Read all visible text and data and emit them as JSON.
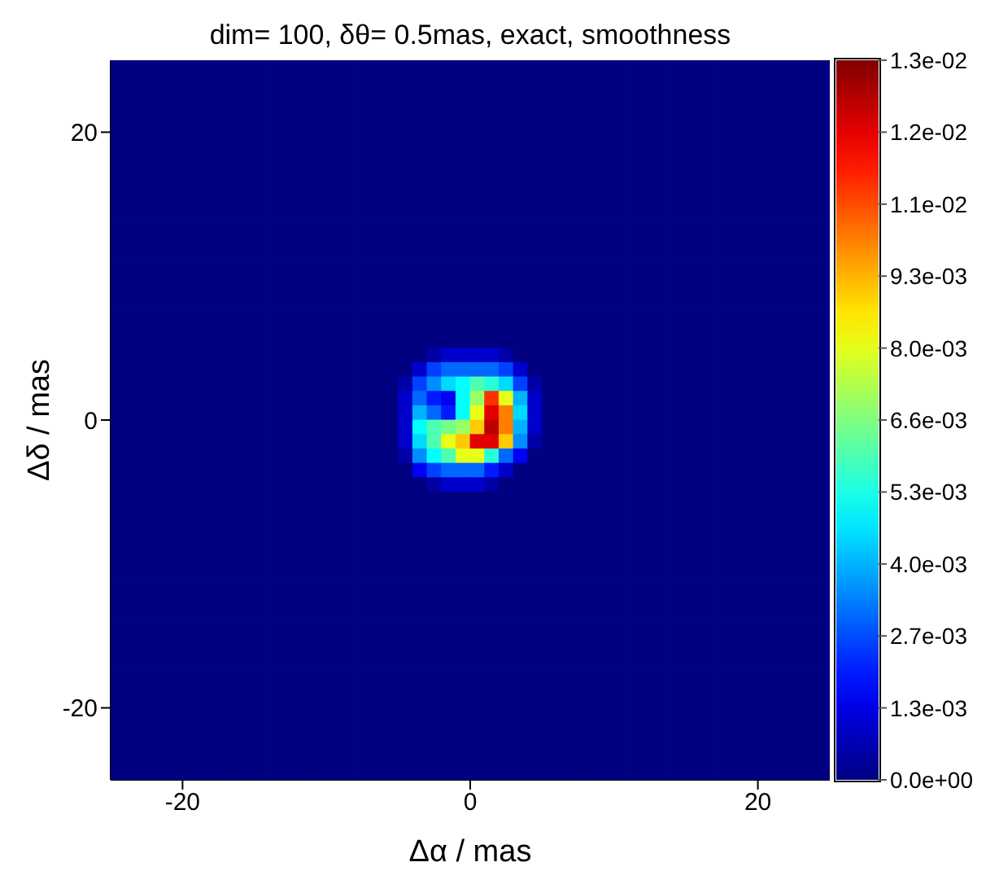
{
  "chart_data": {
    "type": "heatmap",
    "title": "dim= 100, δθ= 0.5mas, exact, smoothness",
    "xlabel": "Δα / mas",
    "ylabel": "Δδ / mas",
    "xlim": [
      -25,
      25
    ],
    "ylim": [
      -25,
      25
    ],
    "xticks": [
      -20,
      0,
      20
    ],
    "yticks": [
      -20,
      0,
      20
    ],
    "clim": [
      0,
      0.0133
    ],
    "cticks": [
      {
        "value": 0,
        "label": "0.0e+00"
      },
      {
        "value": 0.00133,
        "label": "1.3e-03"
      },
      {
        "value": 0.00266,
        "label": "2.7e-03"
      },
      {
        "value": 0.00399,
        "label": "4.0e-03"
      },
      {
        "value": 0.00532,
        "label": "5.3e-03"
      },
      {
        "value": 0.00665,
        "label": "6.6e-03"
      },
      {
        "value": 0.00798,
        "label": "8.0e-03"
      },
      {
        "value": 0.00931,
        "label": "9.3e-03"
      },
      {
        "value": 0.01064,
        "label": "1.1e-02"
      },
      {
        "value": 0.01197,
        "label": "1.2e-02"
      },
      {
        "value": 0.0133,
        "label": "1.3e-02"
      }
    ],
    "cells": [
      [
        0,
        0,
        0,
        0,
        0,
        0,
        0,
        0,
        0,
        0,
        0,
        0,
        0,
        0,
        0,
        0,
        0,
        0,
        0,
        0,
        0,
        0,
        0,
        0,
        0,
        0,
        0,
        0,
        0,
        0,
        0,
        0,
        0,
        0,
        0,
        0,
        0,
        0,
        0,
        0,
        0,
        0,
        0,
        0,
        0,
        0,
        0,
        0,
        0,
        0
      ],
      [
        0,
        0,
        0,
        0,
        0,
        0,
        0,
        0,
        0,
        0,
        0,
        0,
        0,
        0,
        0,
        0,
        0,
        0,
        0,
        0,
        0,
        0,
        0,
        0,
        0,
        0,
        0,
        0,
        0,
        0,
        0,
        0,
        0,
        0,
        0,
        0,
        0,
        0,
        0,
        0,
        0,
        0,
        0,
        0,
        0,
        0,
        0,
        0,
        0,
        0
      ],
      [
        0,
        0,
        0,
        0,
        0,
        0,
        0,
        0,
        0,
        0,
        0,
        0,
        0,
        0,
        0,
        0,
        0,
        0,
        0,
        0,
        0,
        0,
        0,
        0,
        0,
        0,
        0,
        0,
        0,
        0,
        0,
        0,
        0,
        0,
        0,
        0,
        0,
        0,
        0,
        0,
        0,
        0,
        0,
        0,
        0,
        0,
        0,
        0,
        0,
        0
      ],
      [
        0,
        0,
        0,
        0,
        0,
        0,
        0,
        0,
        0,
        0,
        0,
        0,
        0,
        0,
        0,
        0,
        0,
        0,
        0,
        0,
        0,
        0,
        0,
        0,
        0,
        0,
        0,
        0,
        0,
        0,
        0,
        0,
        0,
        0,
        0,
        0,
        0,
        0,
        0,
        0,
        0,
        0,
        0,
        0,
        0,
        0,
        0,
        0,
        0,
        0
      ],
      [
        0,
        0,
        0,
        0,
        0,
        0,
        0,
        0,
        0,
        0,
        0,
        0,
        0,
        0,
        0,
        0,
        0,
        0,
        0,
        0,
        0,
        0,
        0,
        0,
        0,
        0,
        0,
        0,
        0,
        0,
        0,
        0,
        0,
        0,
        0,
        0,
        0,
        0,
        0,
        0,
        0,
        0,
        0,
        0,
        0,
        0,
        0,
        0,
        0,
        0
      ],
      [
        0,
        0,
        0,
        0,
        0,
        0,
        0,
        0,
        0,
        0,
        0,
        0,
        0,
        0,
        0,
        0,
        0,
        0,
        0,
        0,
        0,
        0,
        0,
        0,
        0,
        0,
        0,
        0,
        0,
        0,
        0,
        0,
        0,
        0,
        0,
        0,
        0,
        0,
        0,
        0,
        0,
        0,
        0,
        0,
        0,
        0,
        0,
        0,
        0,
        0
      ],
      [
        0,
        0,
        0,
        0,
        0,
        0,
        0,
        0,
        0,
        0,
        0,
        0,
        0,
        0,
        0,
        0,
        0,
        0,
        0,
        0,
        0,
        0,
        0,
        0,
        0,
        0,
        0,
        0,
        0,
        0,
        0,
        0,
        0,
        0,
        0,
        0,
        0,
        0,
        0,
        0,
        0,
        0,
        0,
        0,
        0,
        0,
        0,
        0,
        0,
        0
      ],
      [
        0,
        0,
        0,
        0,
        0,
        0,
        0,
        0,
        0,
        0,
        0,
        0,
        0,
        0,
        0,
        0,
        0,
        0,
        0,
        0,
        0,
        0,
        0,
        0,
        0,
        0,
        0,
        0,
        0,
        0,
        0,
        0,
        0,
        0,
        0,
        0,
        0,
        0,
        0,
        0,
        0,
        0,
        0,
        0,
        0,
        0,
        0,
        0,
        0,
        0
      ],
      [
        0,
        0,
        0,
        0,
        0,
        0,
        0,
        0,
        0,
        0,
        0,
        0,
        0,
        0,
        0,
        0,
        0,
        0,
        0,
        0,
        0,
        0,
        0,
        0,
        0,
        0,
        0,
        0,
        0,
        0,
        0,
        0,
        0,
        0,
        0,
        0,
        0,
        0,
        0,
        0,
        0,
        0,
        0,
        0,
        0,
        0,
        0,
        0,
        0,
        0
      ],
      [
        0,
        0,
        0,
        0,
        0,
        0,
        0,
        0,
        0,
        0,
        0,
        0,
        0,
        0,
        0,
        0,
        0,
        0,
        0,
        0,
        0,
        0,
        0,
        0,
        0,
        0,
        0,
        0,
        0,
        0,
        0,
        0,
        0,
        0,
        0,
        0,
        0,
        0,
        0,
        0,
        0,
        0,
        0,
        0,
        0,
        0,
        0,
        0,
        0,
        0
      ],
      [
        0,
        0,
        0,
        0,
        0,
        0,
        0,
        0,
        0,
        0,
        0,
        0,
        0,
        0,
        0,
        0,
        0,
        0,
        0,
        0,
        0,
        0,
        0,
        0,
        0,
        0,
        0,
        0,
        0,
        0,
        0,
        0,
        0,
        0,
        0,
        0,
        0,
        0,
        0,
        0,
        0,
        0,
        0,
        0,
        0,
        0,
        0,
        0,
        0,
        0
      ],
      [
        0,
        0,
        0,
        0,
        0,
        0,
        0,
        0,
        0,
        0,
        0,
        0,
        0,
        0,
        0,
        0,
        0,
        0,
        0,
        0,
        0,
        0,
        0,
        0,
        0,
        0,
        0,
        0,
        0,
        0,
        0,
        0,
        0,
        0,
        0,
        0,
        0,
        0,
        0,
        0,
        0,
        0,
        0,
        0,
        0,
        0,
        0,
        0,
        0,
        0
      ],
      [
        0,
        0,
        0,
        0,
        0,
        0,
        0,
        0,
        0,
        0,
        0,
        0,
        0,
        0,
        0,
        0,
        0,
        0,
        0,
        0,
        0,
        0,
        0,
        0,
        0,
        0,
        0,
        0,
        0,
        0,
        0,
        0,
        0,
        0,
        0,
        0,
        0,
        0,
        0,
        0,
        0,
        0,
        0,
        0,
        0,
        0,
        0,
        0,
        0,
        0
      ],
      [
        0,
        0,
        0,
        0,
        0,
        0,
        0,
        0,
        0,
        0,
        0,
        0,
        0,
        0,
        0,
        0,
        0,
        0,
        0,
        0,
        0,
        0,
        0,
        0,
        0,
        0,
        0,
        0,
        0,
        0,
        0,
        0,
        0,
        0,
        0,
        0,
        0,
        0,
        0,
        0,
        0,
        0,
        0,
        0,
        0,
        0,
        0,
        0,
        0,
        0
      ],
      [
        0,
        0,
        0,
        0,
        0,
        0,
        0,
        0,
        0,
        0,
        0,
        0,
        0,
        0,
        0,
        0,
        0,
        0,
        0,
        0,
        0,
        0,
        0,
        0,
        0,
        0,
        0,
        0,
        0,
        0,
        0,
        0,
        0,
        0,
        0,
        0,
        0,
        0,
        0,
        0,
        0,
        0,
        0,
        0,
        0,
        0,
        0,
        0,
        0,
        0
      ],
      [
        0,
        0,
        0,
        0,
        0,
        0,
        0,
        0,
        0,
        0,
        0,
        0,
        0,
        0,
        0,
        0,
        0,
        0,
        0,
        0,
        0,
        0,
        0,
        0,
        0,
        0,
        0,
        0,
        0,
        0,
        0,
        0,
        0,
        0,
        0,
        0,
        0,
        0,
        0,
        0,
        0,
        0,
        0,
        0,
        0,
        0,
        0,
        0,
        0,
        0
      ],
      [
        0,
        0,
        0,
        0,
        0,
        0,
        0,
        0,
        0,
        0,
        0,
        0,
        0,
        0,
        0,
        0,
        0,
        0,
        0,
        0,
        0,
        0,
        0,
        0,
        0,
        0,
        0,
        0,
        0,
        0,
        0,
        0,
        0,
        0,
        0,
        0,
        0,
        0,
        0,
        0,
        0,
        0,
        0,
        0,
        0,
        0,
        0,
        0,
        0,
        0
      ],
      [
        0,
        0,
        0,
        0,
        0,
        0,
        0,
        0,
        0,
        0,
        0,
        0,
        0,
        0,
        0,
        0,
        0,
        0,
        0,
        0,
        0,
        0,
        0,
        0,
        0,
        0,
        0,
        0,
        0,
        0,
        0,
        0,
        0,
        0,
        0,
        0,
        0,
        0,
        0,
        0,
        0,
        0,
        0,
        0,
        0,
        0,
        0,
        0,
        0,
        0
      ],
      [
        0,
        0,
        0,
        0,
        0,
        0,
        0,
        0,
        0,
        0,
        0,
        0,
        0,
        0,
        0,
        0,
        0,
        0,
        0,
        0,
        0,
        0,
        0,
        0,
        0,
        0,
        0,
        0,
        0,
        0,
        0,
        0,
        0,
        0,
        0,
        0,
        0,
        0,
        0,
        0,
        0,
        0,
        0,
        0,
        0,
        0,
        0,
        0,
        0,
        0
      ],
      [
        0,
        0,
        0,
        0,
        0,
        0,
        0,
        0,
        0,
        0,
        0,
        0,
        0,
        0,
        0,
        0,
        0,
        0,
        0,
        0,
        0,
        0,
        0,
        0,
        0,
        0,
        0,
        0,
        0,
        0,
        0,
        0,
        0,
        0,
        0,
        0,
        0,
        0,
        0,
        0,
        0,
        0,
        0,
        0,
        0,
        0,
        0,
        0,
        0,
        0
      ],
      [
        0,
        0,
        0,
        0,
        0,
        0,
        0,
        0,
        0,
        0,
        0,
        0,
        0,
        0,
        0,
        0,
        0,
        0,
        0,
        0,
        0,
        0,
        0.0005,
        0.001,
        0.001,
        0.001,
        0.001,
        0.0005,
        0,
        0,
        0,
        0,
        0,
        0,
        0,
        0,
        0,
        0,
        0,
        0,
        0,
        0,
        0,
        0,
        0,
        0,
        0,
        0,
        0,
        0
      ],
      [
        0,
        0,
        0,
        0,
        0,
        0,
        0,
        0,
        0,
        0,
        0,
        0,
        0,
        0,
        0,
        0,
        0,
        0,
        0,
        0,
        0,
        0.001,
        0.0025,
        0.003,
        0.003,
        0.003,
        0.003,
        0.0025,
        0.001,
        0,
        0,
        0,
        0,
        0,
        0,
        0,
        0,
        0,
        0,
        0,
        0,
        0,
        0,
        0,
        0,
        0,
        0,
        0,
        0,
        0
      ],
      [
        0,
        0,
        0,
        0,
        0,
        0,
        0,
        0,
        0,
        0,
        0,
        0,
        0,
        0,
        0,
        0,
        0,
        0,
        0,
        0,
        0.0005,
        0.0025,
        0.0035,
        0.0045,
        0.005,
        0.006,
        0.0055,
        0.0045,
        0.0025,
        0.0005,
        0,
        0,
        0,
        0,
        0,
        0,
        0,
        0,
        0,
        0,
        0,
        0,
        0,
        0,
        0,
        0,
        0,
        0,
        0,
        0
      ],
      [
        0,
        0,
        0,
        0,
        0,
        0,
        0,
        0,
        0,
        0,
        0,
        0,
        0,
        0,
        0,
        0,
        0,
        0,
        0,
        0,
        0.001,
        0.003,
        0.002,
        0.0015,
        0.005,
        0.007,
        0.011,
        0.008,
        0.004,
        0.001,
        0,
        0,
        0,
        0,
        0,
        0,
        0,
        0,
        0,
        0,
        0,
        0,
        0,
        0,
        0,
        0,
        0,
        0,
        0,
        0
      ],
      [
        0,
        0,
        0,
        0,
        0,
        0,
        0,
        0,
        0,
        0,
        0,
        0,
        0,
        0,
        0,
        0,
        0,
        0,
        0,
        0,
        0.001,
        0.004,
        0.003,
        0.002,
        0.005,
        0.008,
        0.012,
        0.01,
        0.0045,
        0.001,
        0,
        0,
        0,
        0,
        0,
        0,
        0,
        0,
        0,
        0,
        0,
        0,
        0,
        0,
        0,
        0,
        0,
        0,
        0,
        0
      ],
      [
        0,
        0,
        0,
        0,
        0,
        0,
        0,
        0,
        0,
        0,
        0,
        0,
        0,
        0,
        0,
        0,
        0,
        0,
        0,
        0,
        0.001,
        0.005,
        0.006,
        0.0065,
        0.007,
        0.009,
        0.0125,
        0.01,
        0.004,
        0.001,
        0,
        0,
        0,
        0,
        0,
        0,
        0,
        0,
        0,
        0,
        0,
        0,
        0,
        0,
        0,
        0,
        0,
        0,
        0,
        0
      ],
      [
        0,
        0,
        0,
        0,
        0,
        0,
        0,
        0,
        0,
        0,
        0,
        0,
        0,
        0,
        0,
        0,
        0,
        0,
        0,
        0,
        0.001,
        0.0045,
        0.006,
        0.008,
        0.009,
        0.012,
        0.012,
        0.009,
        0.0035,
        0.0005,
        0,
        0,
        0,
        0,
        0,
        0,
        0,
        0,
        0,
        0,
        0,
        0,
        0,
        0,
        0,
        0,
        0,
        0,
        0,
        0
      ],
      [
        0,
        0,
        0,
        0,
        0,
        0,
        0,
        0,
        0,
        0,
        0,
        0,
        0,
        0,
        0,
        0,
        0,
        0,
        0,
        0,
        0.0005,
        0.0035,
        0.005,
        0.006,
        0.008,
        0.008,
        0.0055,
        0.003,
        0.0015,
        0,
        0,
        0,
        0,
        0,
        0,
        0,
        0,
        0,
        0,
        0,
        0,
        0,
        0,
        0,
        0,
        0,
        0,
        0,
        0,
        0
      ],
      [
        0,
        0,
        0,
        0,
        0,
        0,
        0,
        0,
        0,
        0,
        0,
        0,
        0,
        0,
        0,
        0,
        0,
        0,
        0,
        0,
        0,
        0.0015,
        0.0025,
        0.003,
        0.003,
        0.003,
        0.002,
        0.001,
        0,
        0,
        0,
        0,
        0,
        0,
        0,
        0,
        0,
        0,
        0,
        0,
        0,
        0,
        0,
        0,
        0,
        0,
        0,
        0,
        0,
        0
      ],
      [
        0,
        0,
        0,
        0,
        0,
        0,
        0,
        0,
        0,
        0,
        0,
        0,
        0,
        0,
        0,
        0,
        0,
        0,
        0,
        0,
        0,
        0,
        0.0005,
        0.001,
        0.001,
        0.001,
        0.0005,
        0,
        0,
        0,
        0,
        0,
        0,
        0,
        0,
        0,
        0,
        0,
        0,
        0,
        0,
        0,
        0,
        0,
        0,
        0,
        0,
        0,
        0,
        0
      ],
      [
        0,
        0,
        0,
        0,
        0,
        0,
        0,
        0,
        0,
        0,
        0,
        0,
        0,
        0,
        0,
        0,
        0,
        0,
        0,
        0,
        0,
        0,
        0,
        0,
        0,
        0,
        0,
        0,
        0,
        0,
        0,
        0,
        0,
        0,
        0,
        0,
        0,
        0,
        0,
        0,
        0,
        0,
        0,
        0,
        0,
        0,
        0,
        0,
        0,
        0
      ],
      [
        0,
        0,
        0,
        0,
        0,
        0,
        0,
        0,
        0,
        0,
        0,
        0,
        0,
        0,
        0,
        0,
        0,
        0,
        0,
        0,
        0,
        0,
        0,
        0,
        0,
        0,
        0,
        0,
        0,
        0,
        0,
        0,
        0,
        0,
        0,
        0,
        0,
        0,
        0,
        0,
        0,
        0,
        0,
        0,
        0,
        0,
        0,
        0,
        0,
        0
      ],
      [
        0,
        0,
        0,
        0,
        0,
        0,
        0,
        0,
        0,
        0,
        0,
        0,
        0,
        0,
        0,
        0,
        0,
        0,
        0,
        0,
        0,
        0,
        0,
        0,
        0,
        0,
        0,
        0,
        0,
        0,
        0,
        0,
        0,
        0,
        0,
        0,
        0,
        0,
        0,
        0,
        0,
        0,
        0,
        0,
        0,
        0,
        0,
        0,
        0,
        0
      ],
      [
        0,
        0,
        0,
        0,
        0,
        0,
        0,
        0,
        0,
        0,
        0,
        0,
        0,
        0,
        0,
        0,
        0,
        0,
        0,
        0,
        0,
        0,
        0,
        0,
        0,
        0,
        0,
        0,
        0,
        0,
        0,
        0,
        0,
        0,
        0,
        0,
        0,
        0,
        0,
        0,
        0,
        0,
        0,
        0,
        0,
        0,
        0,
        0,
        0,
        0
      ],
      [
        0,
        0,
        0,
        0,
        0,
        0,
        0,
        0,
        0,
        0,
        0,
        0,
        0,
        0,
        0,
        0,
        0,
        0,
        0,
        0,
        0,
        0,
        0,
        0,
        0,
        0,
        0,
        0,
        0,
        0,
        0,
        0,
        0,
        0,
        0,
        0,
        0,
        0,
        0,
        0,
        0,
        0,
        0,
        0,
        0,
        0,
        0,
        0,
        0,
        0
      ],
      [
        0,
        0,
        0,
        0,
        0,
        0,
        0,
        0,
        0,
        0,
        0,
        0,
        0,
        0,
        0,
        0,
        0,
        0,
        0,
        0,
        0,
        0,
        0,
        0,
        0,
        0,
        0,
        0,
        0,
        0,
        0,
        0,
        0,
        0,
        0,
        0,
        0,
        0,
        0,
        0,
        0,
        0,
        0,
        0,
        0,
        0,
        0,
        0,
        0,
        0
      ],
      [
        0,
        0,
        0,
        0,
        0,
        0,
        0,
        0,
        0,
        0,
        0,
        0,
        0,
        0,
        0,
        0,
        0,
        0,
        0,
        0,
        0,
        0,
        0,
        0,
        0,
        0,
        0,
        0,
        0,
        0,
        0,
        0,
        0,
        0,
        0,
        0,
        0,
        0,
        0,
        0,
        0,
        0,
        0,
        0,
        0,
        0,
        0,
        0,
        0,
        0
      ],
      [
        0,
        0,
        0,
        0,
        0,
        0,
        0,
        0,
        0,
        0,
        0,
        0,
        0,
        0,
        0,
        0,
        0,
        0,
        0,
        0,
        0,
        0,
        0,
        0,
        0,
        0,
        0,
        0,
        0,
        0,
        0,
        0,
        0,
        0,
        0,
        0,
        0,
        0,
        0,
        0,
        0,
        0,
        0,
        0,
        0,
        0,
        0,
        0,
        0,
        0
      ],
      [
        0,
        0,
        0,
        0,
        0,
        0,
        0,
        0,
        0,
        0,
        0,
        0,
        0,
        0,
        0,
        0,
        0,
        0,
        0,
        0,
        0,
        0,
        0,
        0,
        0,
        0,
        0,
        0,
        0,
        0,
        0,
        0,
        0,
        0,
        0,
        0,
        0,
        0,
        0,
        0,
        0,
        0,
        0,
        0,
        0,
        0,
        0,
        0,
        0,
        0
      ],
      [
        0,
        0,
        0,
        0,
        0,
        0,
        0,
        0,
        0,
        0,
        0,
        0,
        0,
        0,
        0,
        0,
        0,
        0,
        0,
        0,
        0,
        0,
        0,
        0,
        0,
        0,
        0,
        0,
        0,
        0,
        0,
        0,
        0,
        0,
        0,
        0,
        0,
        0,
        0,
        0,
        0,
        0,
        0,
        0,
        0,
        0,
        0,
        0,
        0,
        0
      ],
      [
        0,
        0,
        0,
        0,
        0,
        0,
        0,
        0,
        0,
        0,
        0,
        0,
        0,
        0,
        0,
        0,
        0,
        0,
        0,
        0,
        0,
        0,
        0,
        0,
        0,
        0,
        0,
        0,
        0,
        0,
        0,
        0,
        0,
        0,
        0,
        0,
        0,
        0,
        0,
        0,
        0,
        0,
        0,
        0,
        0,
        0,
        0,
        0,
        0,
        0
      ],
      [
        0,
        0,
        0,
        0,
        0,
        0,
        0,
        0,
        0,
        0,
        0,
        0,
        0,
        0,
        0,
        0,
        0,
        0,
        0,
        0,
        0,
        0,
        0,
        0,
        0,
        0,
        0,
        0,
        0,
        0,
        0,
        0,
        0,
        0,
        0,
        0,
        0,
        0,
        0,
        0,
        0,
        0,
        0,
        0,
        0,
        0,
        0,
        0,
        0,
        0
      ],
      [
        0,
        0,
        0,
        0,
        0,
        0,
        0,
        0,
        0,
        0,
        0,
        0,
        0,
        0,
        0,
        0,
        0,
        0,
        0,
        0,
        0,
        0,
        0,
        0,
        0,
        0,
        0,
        0,
        0,
        0,
        0,
        0,
        0,
        0,
        0,
        0,
        0,
        0,
        0,
        0,
        0,
        0,
        0,
        0,
        0,
        0,
        0,
        0,
        0,
        0
      ],
      [
        0,
        0,
        0,
        0,
        0,
        0,
        0,
        0,
        0,
        0,
        0,
        0,
        0,
        0,
        0,
        0,
        0,
        0,
        0,
        0,
        0,
        0,
        0,
        0,
        0,
        0,
        0,
        0,
        0,
        0,
        0,
        0,
        0,
        0,
        0,
        0,
        0,
        0,
        0,
        0,
        0,
        0,
        0,
        0,
        0,
        0,
        0,
        0,
        0,
        0
      ],
      [
        0,
        0,
        0,
        0,
        0,
        0,
        0,
        0,
        0,
        0,
        0,
        0,
        0,
        0,
        0,
        0,
        0,
        0,
        0,
        0,
        0,
        0,
        0,
        0,
        0,
        0,
        0,
        0,
        0,
        0,
        0,
        0,
        0,
        0,
        0,
        0,
        0,
        0,
        0,
        0,
        0,
        0,
        0,
        0,
        0,
        0,
        0,
        0,
        0,
        0
      ],
      [
        0,
        0,
        0,
        0,
        0,
        0,
        0,
        0,
        0,
        0,
        0,
        0,
        0,
        0,
        0,
        0,
        0,
        0,
        0,
        0,
        0,
        0,
        0,
        0,
        0,
        0,
        0,
        0,
        0,
        0,
        0,
        0,
        0,
        0,
        0,
        0,
        0,
        0,
        0,
        0,
        0,
        0,
        0,
        0,
        0,
        0,
        0,
        0,
        0,
        0
      ],
      [
        0,
        0,
        0,
        0,
        0,
        0,
        0,
        0,
        0,
        0,
        0,
        0,
        0,
        0,
        0,
        0,
        0,
        0,
        0,
        0,
        0,
        0,
        0,
        0,
        0,
        0,
        0,
        0,
        0,
        0,
        0,
        0,
        0,
        0,
        0,
        0,
        0,
        0,
        0,
        0,
        0,
        0,
        0,
        0,
        0,
        0,
        0,
        0,
        0,
        0
      ],
      [
        0,
        0,
        0,
        0,
        0,
        0,
        0,
        0,
        0,
        0,
        0,
        0,
        0,
        0,
        0,
        0,
        0,
        0,
        0,
        0,
        0,
        0,
        0,
        0,
        0,
        0,
        0,
        0,
        0,
        0,
        0,
        0,
        0,
        0,
        0,
        0,
        0,
        0,
        0,
        0,
        0,
        0,
        0,
        0,
        0,
        0,
        0,
        0,
        0,
        0
      ],
      [
        0,
        0,
        0,
        0,
        0,
        0,
        0,
        0,
        0,
        0,
        0,
        0,
        0,
        0,
        0,
        0,
        0,
        0,
        0,
        0,
        0,
        0,
        0,
        0,
        0,
        0,
        0,
        0,
        0,
        0,
        0,
        0,
        0,
        0,
        0,
        0,
        0,
        0,
        0,
        0,
        0,
        0,
        0,
        0,
        0,
        0,
        0,
        0,
        0,
        0
      ],
      [
        0,
        0,
        0,
        0,
        0,
        0,
        0,
        0,
        0,
        0,
        0,
        0,
        0,
        0,
        0,
        0,
        0,
        0,
        0,
        0,
        0,
        0,
        0,
        0,
        0,
        0,
        0,
        0,
        0,
        0,
        0,
        0,
        0,
        0,
        0,
        0,
        0,
        0,
        0,
        0,
        0,
        0,
        0,
        0,
        0,
        0,
        0,
        0,
        0,
        0
      ]
    ]
  }
}
